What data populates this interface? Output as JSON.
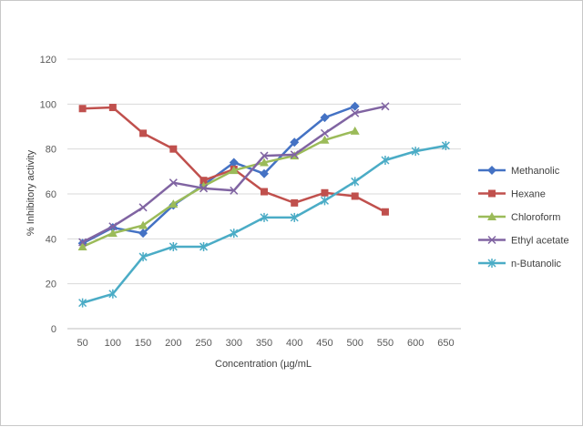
{
  "chart_data": {
    "type": "line",
    "title": "",
    "xlabel": "Concentration (µg/mL",
    "ylabel": "% Inhibitory activity",
    "categories": [
      "50",
      "100",
      "150",
      "200",
      "250",
      "300",
      "350",
      "400",
      "450",
      "500",
      "550",
      "600",
      "650"
    ],
    "ylim": [
      0,
      120
    ],
    "yticks": [
      "0",
      "20",
      "40",
      "60",
      "80",
      "100",
      "120"
    ],
    "grid": true,
    "legend_position": "right",
    "series": [
      {
        "name": "Methanolic",
        "color": "#4472C4",
        "marker": "diamond",
        "values": [
          38,
          45,
          42.5,
          55,
          64,
          74,
          69,
          83,
          94,
          99,
          null,
          null,
          null
        ]
      },
      {
        "name": "Hexane",
        "color": "#C0504D",
        "marker": "square",
        "values": [
          98,
          98.5,
          87,
          80,
          66,
          71,
          61,
          56,
          60.5,
          59,
          52,
          null,
          null
        ]
      },
      {
        "name": "Chloroform",
        "color": "#9BBB59",
        "marker": "triangle",
        "values": [
          36.5,
          42.5,
          46,
          55.5,
          63.5,
          70.5,
          74,
          77,
          84,
          88,
          null,
          null,
          null
        ]
      },
      {
        "name": "Ethyl acetate",
        "color": "#8064A2",
        "marker": "x",
        "values": [
          38.5,
          45.5,
          54,
          65,
          62.5,
          61.5,
          77,
          77.5,
          87,
          96,
          99,
          null,
          null
        ]
      },
      {
        "name": "n-Butanolic",
        "color": "#4BACC6",
        "marker": "star",
        "values": [
          11.5,
          15.5,
          32,
          36.5,
          36.5,
          42.5,
          49.5,
          49.5,
          57,
          65.5,
          75,
          79,
          81.5
        ]
      }
    ]
  }
}
